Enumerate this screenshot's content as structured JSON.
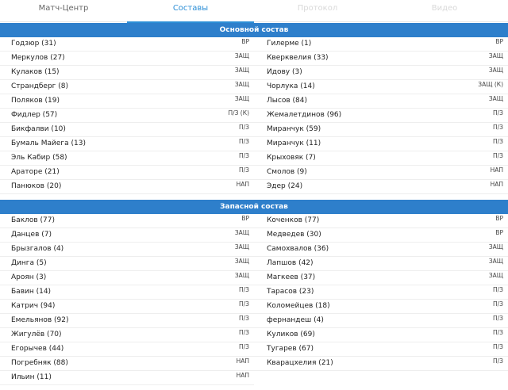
{
  "tabs": [
    {
      "label": "Матч-Центр",
      "state": "normal"
    },
    {
      "label": "Составы",
      "state": "active"
    },
    {
      "label": "Протокол",
      "state": "faded"
    },
    {
      "label": "Видео",
      "state": "faded"
    }
  ],
  "main": {
    "title": "Основной состав",
    "left": [
      {
        "name": "Годзюр (31)",
        "pos": "ВР"
      },
      {
        "name": "Меркулов (27)",
        "pos": "ЗАЩ"
      },
      {
        "name": "Кулаков (15)",
        "pos": "ЗАЩ"
      },
      {
        "name": "Страндберг (8)",
        "pos": "ЗАЩ"
      },
      {
        "name": "Поляков (19)",
        "pos": "ЗАЩ"
      },
      {
        "name": "Фидлер (57)",
        "pos": "П/З (К)"
      },
      {
        "name": "Бикфалви (10)",
        "pos": "П/З"
      },
      {
        "name": "Бумаль Майега (13)",
        "pos": "П/З"
      },
      {
        "name": "Эль Кабир (58)",
        "pos": "П/З"
      },
      {
        "name": "Араторе (21)",
        "pos": "П/З"
      },
      {
        "name": "Панюков (20)",
        "pos": "НАП"
      }
    ],
    "right": [
      {
        "name": "Гилерме (1)",
        "pos": "ВР"
      },
      {
        "name": "Кверквелия (33)",
        "pos": "ЗАЩ"
      },
      {
        "name": "Идову (3)",
        "pos": "ЗАЩ"
      },
      {
        "name": "Чорлука (14)",
        "pos": "ЗАЩ (К)"
      },
      {
        "name": "Лысов (84)",
        "pos": "ЗАЩ"
      },
      {
        "name": "Жемалетдинов (96)",
        "pos": "П/З"
      },
      {
        "name": "Миранчук (59)",
        "pos": "П/З"
      },
      {
        "name": "Миранчук (11)",
        "pos": "П/З"
      },
      {
        "name": "Крыховяк (7)",
        "pos": "П/З"
      },
      {
        "name": "Смолов (9)",
        "pos": "НАП"
      },
      {
        "name": "Эдер (24)",
        "pos": "НАП"
      }
    ]
  },
  "subs": {
    "title": "Запасной состав",
    "left": [
      {
        "name": "Баклов (77)",
        "pos": "ВР"
      },
      {
        "name": "Данцев (7)",
        "pos": "ЗАЩ"
      },
      {
        "name": "Брызгалов (4)",
        "pos": "ЗАЩ"
      },
      {
        "name": "Динга (5)",
        "pos": "ЗАЩ"
      },
      {
        "name": "Ароян (3)",
        "pos": "ЗАЩ"
      },
      {
        "name": "Бавин (14)",
        "pos": "П/З"
      },
      {
        "name": "Катрич (94)",
        "pos": "П/З"
      },
      {
        "name": "Емельянов (92)",
        "pos": "П/З"
      },
      {
        "name": "Жигулёв (70)",
        "pos": "П/З"
      },
      {
        "name": "Егорычев (44)",
        "pos": "П/З"
      },
      {
        "name": "Погребняк (88)",
        "pos": "НАП"
      },
      {
        "name": "Ильин (11)",
        "pos": "НАП"
      }
    ],
    "right": [
      {
        "name": "Коченков (77)",
        "pos": "ВР"
      },
      {
        "name": "Медведев (30)",
        "pos": "ВР"
      },
      {
        "name": "Самохвалов (36)",
        "pos": "ЗАЩ"
      },
      {
        "name": "Лапшов (42)",
        "pos": "ЗАЩ"
      },
      {
        "name": "Магкеев (37)",
        "pos": "ЗАЩ"
      },
      {
        "name": "Тарасов (23)",
        "pos": "П/З"
      },
      {
        "name": "Коломейцев (18)",
        "pos": "П/З"
      },
      {
        "name": "фернандеш (4)",
        "pos": "П/З"
      },
      {
        "name": "Куликов (69)",
        "pos": "П/З"
      },
      {
        "name": "Тугарев (67)",
        "pos": "П/З"
      },
      {
        "name": "Кварацхелия (21)",
        "pos": "П/З"
      }
    ]
  }
}
